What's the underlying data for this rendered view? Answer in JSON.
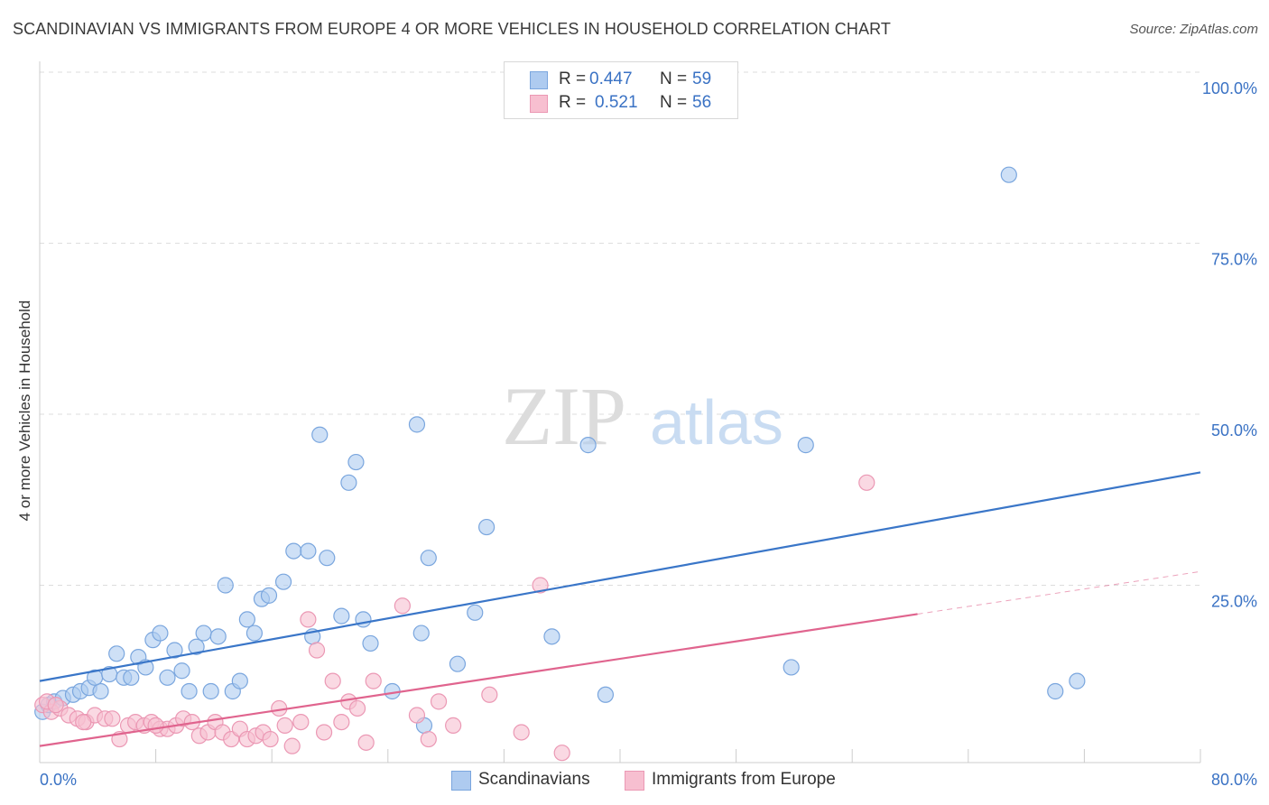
{
  "title": "SCANDINAVIAN VS IMMIGRANTS FROM EUROPE 4 OR MORE VEHICLES IN HOUSEHOLD CORRELATION CHART",
  "source": "Source: ZipAtlas.com",
  "watermark": {
    "zip": "ZIP",
    "atlas": "atlas"
  },
  "legend": {
    "rows": [
      {
        "r_label": "R =",
        "r_value": "0.447",
        "n_label": "N =",
        "n_value": "59"
      },
      {
        "r_label": "R =",
        "r_value": "0.521",
        "n_label": "N =",
        "n_value": "56"
      }
    ]
  },
  "colors": {
    "blue_fill": "#aecbf0",
    "blue_stroke": "#7aa6de",
    "blue_line": "#3a76c8",
    "pink_fill": "#f7bfd0",
    "pink_stroke": "#eb98b4",
    "pink_line": "#e0648e",
    "grid": "#dddddd",
    "axis_text": "#3a72c4"
  },
  "chart_data": {
    "type": "scatter",
    "title": "SCANDINAVIAN VS IMMIGRANTS FROM EUROPE 4 OR MORE VEHICLES IN HOUSEHOLD CORRELATION CHART",
    "xlabel": "",
    "ylabel": "4 or more Vehicles in Household",
    "xlim": [
      0,
      80
    ],
    "ylim": [
      0,
      100
    ],
    "x_tick_labels": [
      "0.0%",
      "80.0%"
    ],
    "y_ticks": [
      25,
      50,
      75,
      100
    ],
    "y_tick_labels": [
      "25.0%",
      "50.0%",
      "75.0%",
      "100.0%"
    ],
    "grid": true,
    "legend_position": "bottom",
    "series": [
      {
        "name": "Scandinavians",
        "r": 0.447,
        "n": 59,
        "trend": {
          "x": [
            0,
            80
          ],
          "y": [
            11.0,
            41.5
          ],
          "dashed_from": null
        },
        "points": [
          [
            0.2,
            6.5
          ],
          [
            0.6,
            7.5
          ],
          [
            1.0,
            8.0
          ],
          [
            1.6,
            8.5
          ],
          [
            2.3,
            9.0
          ],
          [
            2.8,
            9.5
          ],
          [
            3.4,
            10.0
          ],
          [
            4.2,
            9.5
          ],
          [
            3.8,
            11.5
          ],
          [
            4.8,
            12.0
          ],
          [
            5.3,
            15.0
          ],
          [
            5.8,
            11.5
          ],
          [
            6.3,
            11.5
          ],
          [
            6.8,
            14.5
          ],
          [
            7.3,
            13.0
          ],
          [
            7.8,
            17.0
          ],
          [
            8.3,
            18.0
          ],
          [
            8.8,
            11.5
          ],
          [
            9.3,
            15.5
          ],
          [
            9.8,
            12.5
          ],
          [
            10.3,
            9.5
          ],
          [
            10.8,
            16.0
          ],
          [
            11.3,
            18.0
          ],
          [
            11.8,
            9.5
          ],
          [
            12.3,
            17.5
          ],
          [
            12.8,
            25.0
          ],
          [
            13.3,
            9.5
          ],
          [
            13.8,
            11.0
          ],
          [
            14.3,
            20.0
          ],
          [
            14.8,
            18.0
          ],
          [
            15.3,
            23.0
          ],
          [
            15.8,
            23.5
          ],
          [
            16.8,
            25.5
          ],
          [
            17.5,
            30.0
          ],
          [
            18.5,
            30.0
          ],
          [
            18.8,
            17.5
          ],
          [
            19.3,
            47.0
          ],
          [
            19.8,
            29.0
          ],
          [
            20.8,
            20.5
          ],
          [
            21.3,
            40.0
          ],
          [
            21.8,
            43.0
          ],
          [
            22.3,
            20.0
          ],
          [
            22.8,
            16.5
          ],
          [
            24.3,
            9.5
          ],
          [
            26.0,
            48.5
          ],
          [
            26.3,
            18.0
          ],
          [
            26.8,
            29.0
          ],
          [
            28.8,
            13.5
          ],
          [
            30.0,
            21.0
          ],
          [
            30.8,
            33.5
          ],
          [
            35.3,
            17.5
          ],
          [
            37.8,
            45.5
          ],
          [
            39.0,
            9.0
          ],
          [
            51.8,
            13.0
          ],
          [
            52.8,
            45.5
          ],
          [
            66.8,
            85.0
          ],
          [
            70.0,
            9.5
          ],
          [
            71.5,
            11.0
          ],
          [
            26.5,
            4.5
          ]
        ]
      },
      {
        "name": "Immigrants from Europe",
        "r": 0.521,
        "n": 56,
        "trend": {
          "x": [
            0,
            80
          ],
          "y": [
            1.5,
            27.0
          ],
          "dashed_from": 60.5
        },
        "points": [
          [
            0.2,
            7.5
          ],
          [
            0.8,
            6.5
          ],
          [
            1.4,
            7.0
          ],
          [
            2.0,
            6.0
          ],
          [
            2.6,
            5.5
          ],
          [
            3.2,
            5.0
          ],
          [
            3.8,
            6.0
          ],
          [
            4.5,
            5.5
          ],
          [
            5.0,
            5.5
          ],
          [
            5.5,
            2.5
          ],
          [
            6.1,
            4.5
          ],
          [
            6.6,
            5.0
          ],
          [
            7.2,
            4.5
          ],
          [
            7.7,
            5.0
          ],
          [
            8.3,
            4.0
          ],
          [
            8.8,
            4.0
          ],
          [
            9.4,
            4.5
          ],
          [
            9.9,
            5.5
          ],
          [
            10.5,
            5.0
          ],
          [
            11.0,
            3.0
          ],
          [
            11.6,
            3.5
          ],
          [
            12.1,
            5.0
          ],
          [
            12.6,
            3.5
          ],
          [
            13.2,
            2.5
          ],
          [
            13.8,
            4.0
          ],
          [
            14.3,
            2.5
          ],
          [
            14.9,
            3.0
          ],
          [
            15.4,
            3.5
          ],
          [
            15.9,
            2.5
          ],
          [
            16.5,
            7.0
          ],
          [
            16.9,
            4.5
          ],
          [
            17.4,
            1.5
          ],
          [
            18.0,
            5.0
          ],
          [
            18.5,
            20.0
          ],
          [
            19.1,
            15.5
          ],
          [
            19.6,
            3.5
          ],
          [
            20.2,
            11.0
          ],
          [
            20.8,
            5.0
          ],
          [
            21.3,
            8.0
          ],
          [
            21.9,
            7.0
          ],
          [
            22.5,
            2.0
          ],
          [
            23.0,
            11.0
          ],
          [
            25.0,
            22.0
          ],
          [
            26.0,
            6.0
          ],
          [
            26.8,
            2.5
          ],
          [
            27.5,
            8.0
          ],
          [
            28.5,
            4.5
          ],
          [
            31.0,
            9.0
          ],
          [
            33.2,
            3.5
          ],
          [
            34.5,
            25.0
          ],
          [
            36.0,
            0.5
          ],
          [
            57.0,
            40.0
          ],
          [
            0.5,
            8.0
          ],
          [
            1.1,
            7.5
          ],
          [
            3.0,
            5.0
          ],
          [
            8.0,
            4.5
          ]
        ]
      }
    ]
  }
}
